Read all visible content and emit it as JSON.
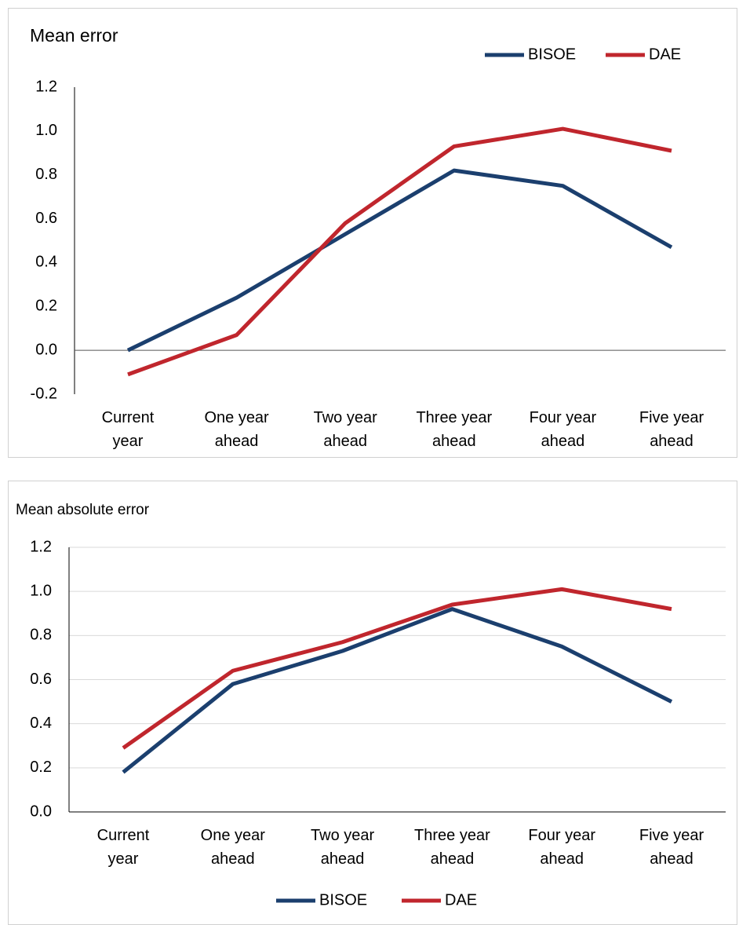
{
  "chart_data": [
    {
      "type": "line",
      "title": "Mean error",
      "categories": [
        "Current year",
        "One year ahead",
        "Two year ahead",
        "Three year ahead",
        "Four year ahead",
        "Five year ahead"
      ],
      "series": [
        {
          "name": "BISOE",
          "color": "#1b3f6e",
          "values": [
            0.0,
            0.24,
            0.53,
            0.82,
            0.75,
            0.47
          ]
        },
        {
          "name": "DAE",
          "color": "#c0262d",
          "values": [
            -0.11,
            0.07,
            0.58,
            0.93,
            1.01,
            0.91
          ]
        }
      ],
      "ylim": [
        -0.2,
        1.2
      ],
      "yticks": [
        {
          "value": 1.2,
          "label": "1.2"
        },
        {
          "value": 1.0,
          "label": "1.0"
        },
        0.8,
        0.6,
        0.4,
        0.2,
        {
          "value": 0,
          "label": "0.0"
        },
        -0.2
      ],
      "grid": false,
      "legend": "top-right"
    },
    {
      "type": "line",
      "title": "Mean absolute error",
      "categories": [
        "Current year",
        "One year ahead",
        "Two year ahead",
        "Three year ahead",
        "Four year ahead",
        "Five year ahead"
      ],
      "series": [
        {
          "name": "BISOE",
          "color": "#1b3f6e",
          "values": [
            0.18,
            0.58,
            0.73,
            0.92,
            0.75,
            0.5
          ]
        },
        {
          "name": "DAE",
          "color": "#c0262d",
          "values": [
            0.29,
            0.64,
            0.77,
            0.94,
            1.01,
            0.92
          ]
        }
      ],
      "ylim": [
        0,
        1.2
      ],
      "yticks": [
        {
          "value": 1.2,
          "label": "1.2"
        },
        {
          "value": 1.0,
          "label": "1.0"
        },
        0.8,
        0.6,
        0.4,
        0.2,
        {
          "value": 0,
          "label": "0.0"
        }
      ],
      "grid": true,
      "legend": "bottom"
    }
  ]
}
